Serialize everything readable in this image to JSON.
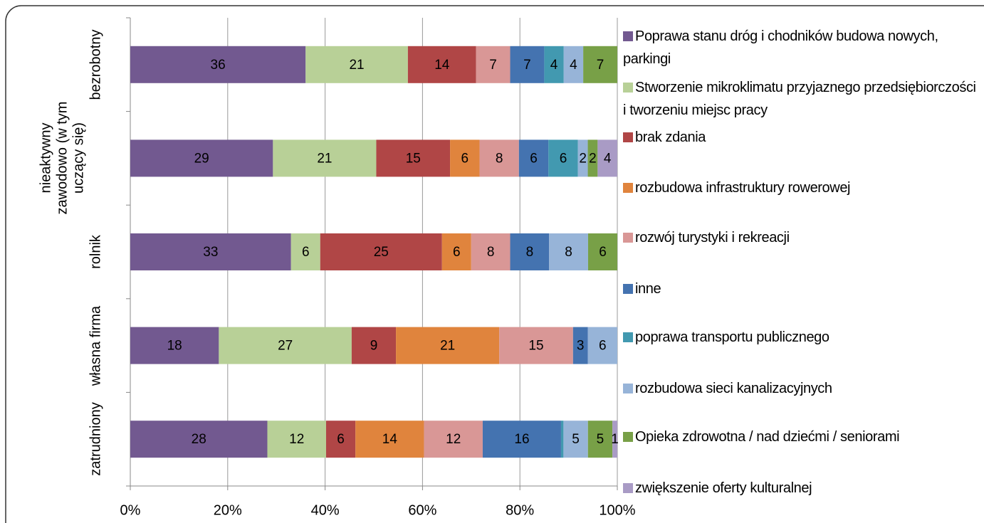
{
  "chart_data": {
    "type": "stacked_bar_100",
    "orientation": "horizontal",
    "categories": [
      "bezrobotny",
      "nieaktywny zawodowo (w tym uczący się)",
      "rolnik",
      "własna firma",
      "zatrudniony"
    ],
    "series": [
      {
        "name": "Poprawa stanu dróg i chodników budowa nowych, parkingi",
        "color": "#725990",
        "values": [
          36,
          29,
          33,
          18,
          28
        ]
      },
      {
        "name": "Stworzenie mikroklimatu przyjaznego przedsiębiorczości i tworzeniu miejsc pracy",
        "color": "#b8d097",
        "values": [
          21,
          21,
          6,
          27,
          12
        ]
      },
      {
        "name": "brak zdania",
        "color": "#b04646",
        "values": [
          14,
          15,
          25,
          9,
          6
        ]
      },
      {
        "name": "rozbudowa infrastruktury rowerowej",
        "color": "#e0843d",
        "values": [
          null,
          6,
          6,
          21,
          14
        ]
      },
      {
        "name": "rozwój turystyki i rekreacji",
        "color": "#d99796",
        "values": [
          7,
          8,
          8,
          15,
          12
        ]
      },
      {
        "name": "inne",
        "color": "#4473b0",
        "values": [
          7,
          6,
          8,
          3,
          16
        ]
      },
      {
        "name": "poprawa transportu publicznego",
        "color": "#4299b0",
        "values": [
          4,
          6,
          null,
          null,
          0.5
        ]
      },
      {
        "name": "rozbudowa sieci kanalizacyjnych",
        "color": "#97b4d8",
        "values": [
          4,
          2,
          8,
          6,
          5
        ]
      },
      {
        "name": "Opieka zdrowotna / nad dziećmi / seniorami",
        "color": "#78a047",
        "values": [
          7,
          2,
          6,
          null,
          5
        ]
      },
      {
        "name": "zwiększenie oferty kulturalnej",
        "color": "#a99bc5",
        "values": [
          null,
          4,
          null,
          null,
          1
        ]
      }
    ],
    "xlim": [
      0,
      100
    ],
    "xticks": [
      {
        "value": 0,
        "label": "0%"
      },
      {
        "value": 20,
        "label": "20%"
      },
      {
        "value": 40,
        "label": "40%"
      },
      {
        "value": 60,
        "label": "60%"
      },
      {
        "value": 80,
        "label": "80%"
      },
      {
        "value": 100,
        "label": "100%"
      }
    ],
    "grid": true
  }
}
